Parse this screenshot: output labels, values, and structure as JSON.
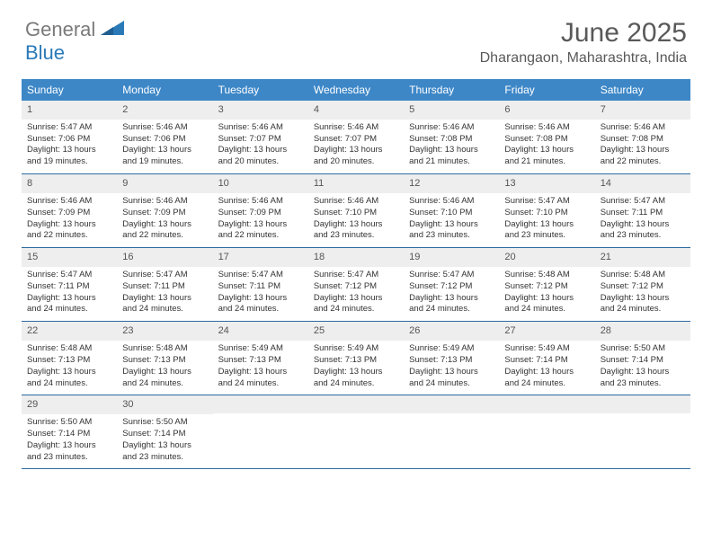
{
  "logo": {
    "text_gray": "General",
    "text_blue": "Blue"
  },
  "header": {
    "month_title": "June 2025",
    "location": "Dharangaon, Maharashtra, India"
  },
  "colors": {
    "header_bg": "#3d87c7",
    "header_text": "#ffffff",
    "daynum_bg": "#eeeeee",
    "week_border": "#2a6aa0",
    "body_text": "#333333",
    "title_text": "#595959"
  },
  "day_labels": [
    "Sunday",
    "Monday",
    "Tuesday",
    "Wednesday",
    "Thursday",
    "Friday",
    "Saturday"
  ],
  "weeks": [
    [
      {
        "n": "1",
        "sr": "Sunrise: 5:47 AM",
        "ss": "Sunset: 7:06 PM",
        "dl": "Daylight: 13 hours and 19 minutes."
      },
      {
        "n": "2",
        "sr": "Sunrise: 5:46 AM",
        "ss": "Sunset: 7:06 PM",
        "dl": "Daylight: 13 hours and 19 minutes."
      },
      {
        "n": "3",
        "sr": "Sunrise: 5:46 AM",
        "ss": "Sunset: 7:07 PM",
        "dl": "Daylight: 13 hours and 20 minutes."
      },
      {
        "n": "4",
        "sr": "Sunrise: 5:46 AM",
        "ss": "Sunset: 7:07 PM",
        "dl": "Daylight: 13 hours and 20 minutes."
      },
      {
        "n": "5",
        "sr": "Sunrise: 5:46 AM",
        "ss": "Sunset: 7:08 PM",
        "dl": "Daylight: 13 hours and 21 minutes."
      },
      {
        "n": "6",
        "sr": "Sunrise: 5:46 AM",
        "ss": "Sunset: 7:08 PM",
        "dl": "Daylight: 13 hours and 21 minutes."
      },
      {
        "n": "7",
        "sr": "Sunrise: 5:46 AM",
        "ss": "Sunset: 7:08 PM",
        "dl": "Daylight: 13 hours and 22 minutes."
      }
    ],
    [
      {
        "n": "8",
        "sr": "Sunrise: 5:46 AM",
        "ss": "Sunset: 7:09 PM",
        "dl": "Daylight: 13 hours and 22 minutes."
      },
      {
        "n": "9",
        "sr": "Sunrise: 5:46 AM",
        "ss": "Sunset: 7:09 PM",
        "dl": "Daylight: 13 hours and 22 minutes."
      },
      {
        "n": "10",
        "sr": "Sunrise: 5:46 AM",
        "ss": "Sunset: 7:09 PM",
        "dl": "Daylight: 13 hours and 22 minutes."
      },
      {
        "n": "11",
        "sr": "Sunrise: 5:46 AM",
        "ss": "Sunset: 7:10 PM",
        "dl": "Daylight: 13 hours and 23 minutes."
      },
      {
        "n": "12",
        "sr": "Sunrise: 5:46 AM",
        "ss": "Sunset: 7:10 PM",
        "dl": "Daylight: 13 hours and 23 minutes."
      },
      {
        "n": "13",
        "sr": "Sunrise: 5:47 AM",
        "ss": "Sunset: 7:10 PM",
        "dl": "Daylight: 13 hours and 23 minutes."
      },
      {
        "n": "14",
        "sr": "Sunrise: 5:47 AM",
        "ss": "Sunset: 7:11 PM",
        "dl": "Daylight: 13 hours and 23 minutes."
      }
    ],
    [
      {
        "n": "15",
        "sr": "Sunrise: 5:47 AM",
        "ss": "Sunset: 7:11 PM",
        "dl": "Daylight: 13 hours and 24 minutes."
      },
      {
        "n": "16",
        "sr": "Sunrise: 5:47 AM",
        "ss": "Sunset: 7:11 PM",
        "dl": "Daylight: 13 hours and 24 minutes."
      },
      {
        "n": "17",
        "sr": "Sunrise: 5:47 AM",
        "ss": "Sunset: 7:11 PM",
        "dl": "Daylight: 13 hours and 24 minutes."
      },
      {
        "n": "18",
        "sr": "Sunrise: 5:47 AM",
        "ss": "Sunset: 7:12 PM",
        "dl": "Daylight: 13 hours and 24 minutes."
      },
      {
        "n": "19",
        "sr": "Sunrise: 5:47 AM",
        "ss": "Sunset: 7:12 PM",
        "dl": "Daylight: 13 hours and 24 minutes."
      },
      {
        "n": "20",
        "sr": "Sunrise: 5:48 AM",
        "ss": "Sunset: 7:12 PM",
        "dl": "Daylight: 13 hours and 24 minutes."
      },
      {
        "n": "21",
        "sr": "Sunrise: 5:48 AM",
        "ss": "Sunset: 7:12 PM",
        "dl": "Daylight: 13 hours and 24 minutes."
      }
    ],
    [
      {
        "n": "22",
        "sr": "Sunrise: 5:48 AM",
        "ss": "Sunset: 7:13 PM",
        "dl": "Daylight: 13 hours and 24 minutes."
      },
      {
        "n": "23",
        "sr": "Sunrise: 5:48 AM",
        "ss": "Sunset: 7:13 PM",
        "dl": "Daylight: 13 hours and 24 minutes."
      },
      {
        "n": "24",
        "sr": "Sunrise: 5:49 AM",
        "ss": "Sunset: 7:13 PM",
        "dl": "Daylight: 13 hours and 24 minutes."
      },
      {
        "n": "25",
        "sr": "Sunrise: 5:49 AM",
        "ss": "Sunset: 7:13 PM",
        "dl": "Daylight: 13 hours and 24 minutes."
      },
      {
        "n": "26",
        "sr": "Sunrise: 5:49 AM",
        "ss": "Sunset: 7:13 PM",
        "dl": "Daylight: 13 hours and 24 minutes."
      },
      {
        "n": "27",
        "sr": "Sunrise: 5:49 AM",
        "ss": "Sunset: 7:14 PM",
        "dl": "Daylight: 13 hours and 24 minutes."
      },
      {
        "n": "28",
        "sr": "Sunrise: 5:50 AM",
        "ss": "Sunset: 7:14 PM",
        "dl": "Daylight: 13 hours and 23 minutes."
      }
    ],
    [
      {
        "n": "29",
        "sr": "Sunrise: 5:50 AM",
        "ss": "Sunset: 7:14 PM",
        "dl": "Daylight: 13 hours and 23 minutes."
      },
      {
        "n": "30",
        "sr": "Sunrise: 5:50 AM",
        "ss": "Sunset: 7:14 PM",
        "dl": "Daylight: 13 hours and 23 minutes."
      },
      {
        "n": "",
        "sr": "",
        "ss": "",
        "dl": ""
      },
      {
        "n": "",
        "sr": "",
        "ss": "",
        "dl": ""
      },
      {
        "n": "",
        "sr": "",
        "ss": "",
        "dl": ""
      },
      {
        "n": "",
        "sr": "",
        "ss": "",
        "dl": ""
      },
      {
        "n": "",
        "sr": "",
        "ss": "",
        "dl": ""
      }
    ]
  ]
}
